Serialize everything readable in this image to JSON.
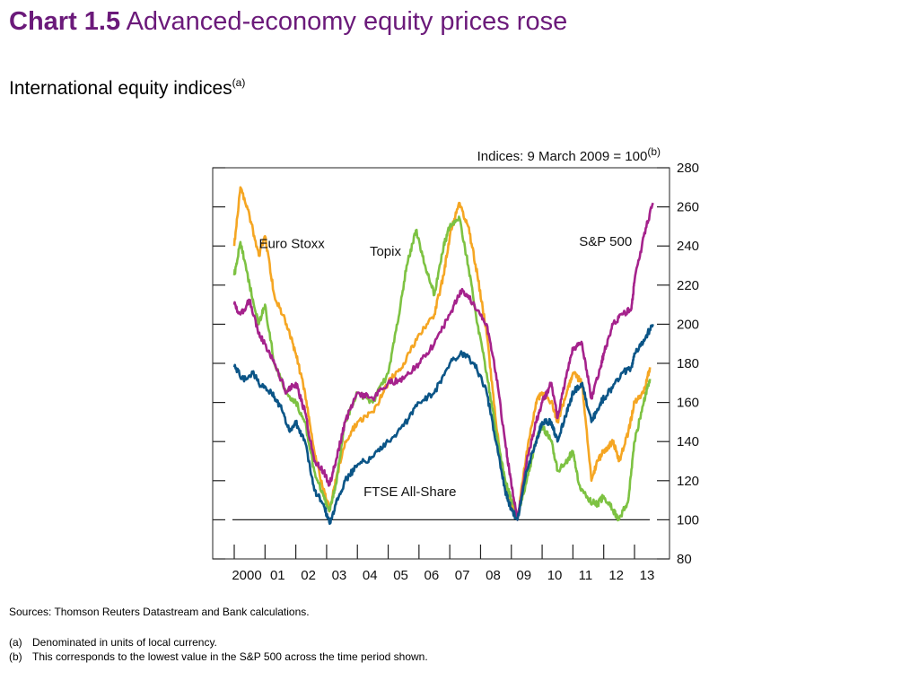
{
  "header": {
    "chart_number": "Chart 1.5",
    "chart_title": "Advanced-economy equity prices rose",
    "subtitle": "International equity indices",
    "subtitle_note_mark": "(a)"
  },
  "footer": {
    "sources": "Sources: Thomson Reuters Datastream and Bank calculations.",
    "notes": [
      {
        "mark": "(a)",
        "text": "Denominated in units of local currency."
      },
      {
        "mark": "(b)",
        "text": "This corresponds to the lowest value in the S&P 500 across the time period shown."
      }
    ]
  },
  "chart_data": {
    "type": "line",
    "ylabel": "Indices:  9 March 2009 = 100",
    "ylabel_note_mark": "(b)",
    "ylim": [
      80,
      280
    ],
    "yticks": [
      80,
      100,
      120,
      140,
      160,
      180,
      200,
      220,
      240,
      260,
      280
    ],
    "xlim": [
      2000,
      2014.1
    ],
    "xticks": [
      {
        "label": "2000",
        "year": 2000
      },
      {
        "label": "01",
        "year": 2001
      },
      {
        "label": "02",
        "year": 2002
      },
      {
        "label": "03",
        "year": 2003
      },
      {
        "label": "04",
        "year": 2004
      },
      {
        "label": "05",
        "year": 2005
      },
      {
        "label": "06",
        "year": 2006
      },
      {
        "label": "07",
        "year": 2007
      },
      {
        "label": "08",
        "year": 2008
      },
      {
        "label": "09",
        "year": 2009
      },
      {
        "label": "10",
        "year": 2010
      },
      {
        "label": "11",
        "year": 2011
      },
      {
        "label": "12",
        "year": 2012
      },
      {
        "label": "13",
        "year": 2013
      }
    ],
    "reference_line": 100,
    "grid": false,
    "series": [
      {
        "name": "Euro Stoxx",
        "color": "#f5a623",
        "x": [
          2000.0,
          2000.2,
          2000.5,
          2000.8,
          2001.0,
          2001.3,
          2001.7,
          2002.0,
          2002.3,
          2002.6,
          2002.9,
          2003.1,
          2003.3,
          2003.6,
          2004.0,
          2004.5,
          2005.0,
          2005.5,
          2006.0,
          2006.5,
          2006.8,
          2007.0,
          2007.3,
          2007.6,
          2007.9,
          2008.2,
          2008.5,
          2008.8,
          2009.0,
          2009.2,
          2009.5,
          2009.8,
          2010.0,
          2010.3,
          2010.5,
          2010.8,
          2011.0,
          2011.3,
          2011.6,
          2011.8,
          2012.0,
          2012.3,
          2012.5,
          2012.8,
          2013.0,
          2013.3,
          2013.5
        ],
        "y": [
          240,
          270,
          255,
          235,
          245,
          215,
          200,
          185,
          165,
          135,
          115,
          105,
          120,
          140,
          150,
          155,
          170,
          180,
          195,
          205,
          225,
          245,
          262,
          250,
          225,
          195,
          150,
          115,
          110,
          100,
          135,
          160,
          165,
          160,
          150,
          165,
          175,
          170,
          120,
          130,
          135,
          140,
          130,
          145,
          160,
          165,
          178
        ]
      },
      {
        "name": "Topix",
        "color": "#7dc242",
        "x": [
          2000.0,
          2000.2,
          2000.5,
          2000.8,
          2001.0,
          2001.3,
          2001.7,
          2002.0,
          2002.3,
          2002.6,
          2002.9,
          2003.1,
          2003.3,
          2003.6,
          2004.0,
          2004.5,
          2005.0,
          2005.3,
          2005.6,
          2005.9,
          2006.2,
          2006.5,
          2006.8,
          2007.0,
          2007.3,
          2007.6,
          2007.9,
          2008.2,
          2008.5,
          2008.8,
          2009.0,
          2009.2,
          2009.5,
          2009.8,
          2010.0,
          2010.3,
          2010.5,
          2010.8,
          2011.0,
          2011.2,
          2011.5,
          2011.8,
          2012.0,
          2012.3,
          2012.5,
          2012.8,
          2013.0,
          2013.3,
          2013.5
        ],
        "y": [
          225,
          242,
          220,
          200,
          210,
          180,
          165,
          160,
          150,
          125,
          112,
          105,
          118,
          150,
          165,
          160,
          175,
          200,
          230,
          248,
          230,
          215,
          240,
          250,
          255,
          230,
          200,
          175,
          145,
          120,
          110,
          102,
          120,
          140,
          148,
          140,
          125,
          130,
          135,
          118,
          110,
          108,
          112,
          105,
          100,
          110,
          140,
          160,
          172
        ]
      },
      {
        "name": "S&P 500",
        "color": "#a5228c",
        "x": [
          2000.0,
          2000.2,
          2000.5,
          2000.8,
          2001.0,
          2001.3,
          2001.7,
          2002.0,
          2002.3,
          2002.6,
          2002.9,
          2003.1,
          2003.3,
          2003.6,
          2004.0,
          2004.5,
          2005.0,
          2005.5,
          2006.0,
          2006.5,
          2007.0,
          2007.4,
          2007.8,
          2008.2,
          2008.5,
          2008.8,
          2009.0,
          2009.2,
          2009.5,
          2009.8,
          2010.0,
          2010.3,
          2010.5,
          2010.8,
          2011.0,
          2011.3,
          2011.6,
          2011.9,
          2012.0,
          2012.3,
          2012.6,
          2012.9,
          2013.0,
          2013.3,
          2013.6
        ],
        "y": [
          210,
          205,
          212,
          195,
          190,
          180,
          165,
          170,
          155,
          130,
          125,
          118,
          130,
          150,
          165,
          162,
          170,
          172,
          180,
          190,
          205,
          218,
          210,
          200,
          175,
          140,
          118,
          100,
          130,
          150,
          160,
          170,
          152,
          175,
          188,
          190,
          162,
          178,
          185,
          200,
          205,
          208,
          222,
          245,
          262
        ]
      },
      {
        "name": "FTSE All-Share",
        "color": "#0b5587",
        "x": [
          2000.0,
          2000.3,
          2000.6,
          2000.9,
          2001.2,
          2001.5,
          2001.8,
          2002.0,
          2002.3,
          2002.6,
          2002.9,
          2003.1,
          2003.3,
          2003.6,
          2004.0,
          2004.5,
          2005.0,
          2005.5,
          2006.0,
          2006.5,
          2007.0,
          2007.4,
          2007.8,
          2008.2,
          2008.5,
          2008.8,
          2009.0,
          2009.2,
          2009.5,
          2009.8,
          2010.0,
          2010.3,
          2010.5,
          2010.8,
          2011.0,
          2011.3,
          2011.6,
          2011.9,
          2012.0,
          2012.3,
          2012.6,
          2012.9,
          2013.0,
          2013.3,
          2013.6
        ],
        "y": [
          178,
          172,
          175,
          168,
          165,
          158,
          145,
          150,
          140,
          115,
          108,
          98,
          108,
          120,
          128,
          132,
          140,
          148,
          160,
          165,
          180,
          185,
          180,
          165,
          140,
          115,
          105,
          100,
          125,
          140,
          150,
          150,
          140,
          155,
          165,
          170,
          150,
          160,
          162,
          168,
          175,
          178,
          185,
          192,
          200
        ]
      }
    ],
    "annotations": [
      {
        "text": "Euro Stoxx",
        "series": "Euro Stoxx"
      },
      {
        "text": "Topix",
        "series": "Topix"
      },
      {
        "text": "S&P 500",
        "series": "S&P 500"
      },
      {
        "text": "FTSE All-Share",
        "series": "FTSE All-Share"
      }
    ]
  }
}
